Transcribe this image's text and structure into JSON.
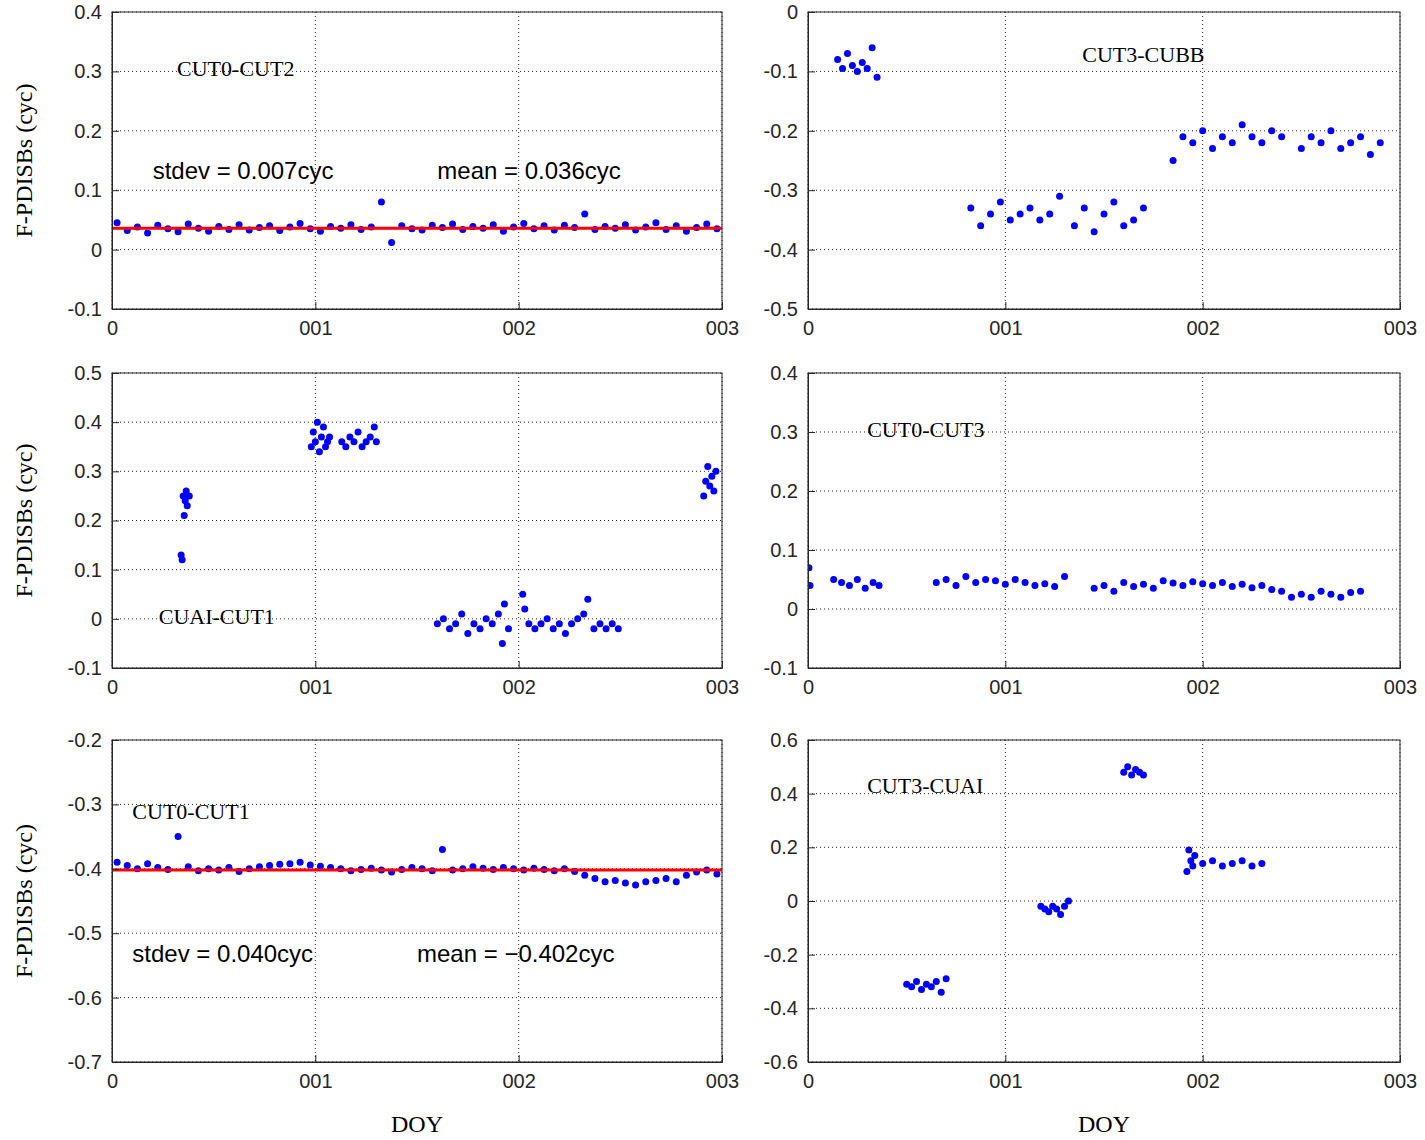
{
  "chart_data": [
    {
      "type": "scatter",
      "annotations": [
        {
          "text": "CUT0-CUT2",
          "x": 0.32,
          "y": 0.3
        },
        {
          "text": "stdev = 0.007cyc",
          "x": 0.2,
          "y": 0.13
        },
        {
          "text": "mean = 0.036cyc",
          "x": 1.6,
          "y": 0.13
        }
      ],
      "ylabel": "F-PDISBs (cyc)",
      "xlim": [
        0,
        3
      ],
      "xticks": [
        0,
        {
          "value": 1,
          "label": "001"
        },
        {
          "value": 2,
          "label": "002"
        },
        {
          "value": 3,
          "label": "003"
        }
      ],
      "ylim": [
        -0.1,
        0.4
      ],
      "yticks": [
        -0.1,
        0,
        0.1,
        0.2,
        0.3,
        0.4
      ],
      "grid": true,
      "series": [
        {
          "type": "scatter",
          "color": "#0000ff",
          "marker": "circle",
          "x": [
            0.025,
            0.075,
            0.125,
            0.175,
            0.225,
            0.275,
            0.325,
            0.375,
            0.425,
            0.475,
            0.525,
            0.575,
            0.625,
            0.675,
            0.725,
            0.775,
            0.825,
            0.875,
            0.925,
            0.975,
            1.025,
            1.075,
            1.125,
            1.175,
            1.225,
            1.275,
            1.325,
            1.375,
            1.425,
            1.475,
            1.525,
            1.575,
            1.625,
            1.675,
            1.725,
            1.775,
            1.825,
            1.875,
            1.925,
            1.975,
            2.025,
            2.075,
            2.125,
            2.175,
            2.225,
            2.275,
            2.325,
            2.375,
            2.425,
            2.475,
            2.525,
            2.575,
            2.625,
            2.675,
            2.725,
            2.775,
            2.825,
            2.875,
            2.925,
            2.975
          ],
          "values": [
            0.045,
            0.032,
            0.038,
            0.028,
            0.041,
            0.035,
            0.03,
            0.043,
            0.036,
            0.031,
            0.039,
            0.034,
            0.042,
            0.033,
            0.037,
            0.04,
            0.032,
            0.038,
            0.044,
            0.035,
            0.031,
            0.039,
            0.036,
            0.042,
            0.034,
            0.038,
            0.08,
            0.012,
            0.04,
            0.035,
            0.033,
            0.041,
            0.037,
            0.043,
            0.034,
            0.039,
            0.036,
            0.042,
            0.031,
            0.038,
            0.044,
            0.035,
            0.04,
            0.033,
            0.041,
            0.037,
            0.06,
            0.034,
            0.039,
            0.036,
            0.042,
            0.033,
            0.038,
            0.045,
            0.034,
            0.04,
            0.031,
            0.037,
            0.043,
            0.035
          ]
        },
        {
          "type": "line",
          "color": "#ff0000",
          "line_style": "solid",
          "x": [
            0,
            3
          ],
          "values": [
            0.036,
            0.036
          ]
        }
      ]
    },
    {
      "type": "scatter",
      "annotations": [
        {
          "text": "CUT3-CUBB",
          "x": 1.39,
          "y": -0.075
        }
      ],
      "xlim": [
        0,
        3
      ],
      "xticks": [
        0,
        {
          "value": 1,
          "label": "001"
        },
        {
          "value": 2,
          "label": "002"
        },
        {
          "value": 3,
          "label": "003"
        }
      ],
      "ylim": [
        -0.5,
        0
      ],
      "yticks": [
        -0.5,
        -0.4,
        -0.3,
        -0.2,
        -0.1,
        0
      ],
      "grid": true,
      "series": [
        {
          "type": "scatter",
          "color": "#0000ff",
          "marker": "circle",
          "x": [
            0.15,
            0.175,
            0.2,
            0.225,
            0.25,
            0.275,
            0.3,
            0.325,
            0.35,
            0.825,
            0.875,
            0.925,
            0.975,
            1.025,
            1.075,
            1.125,
            1.175,
            1.225,
            1.275,
            1.35,
            1.4,
            1.45,
            1.5,
            1.55,
            1.6,
            1.65,
            1.7,
            1.85,
            1.9,
            1.95,
            2,
            2.05,
            2.1,
            2.15,
            2.2,
            2.25,
            2.3,
            2.35,
            2.4,
            2.5,
            2.55,
            2.6,
            2.65,
            2.7,
            2.75,
            2.8,
            2.85,
            2.9
          ],
          "values": [
            -0.08,
            -0.095,
            -0.07,
            -0.09,
            -0.1,
            -0.085,
            -0.095,
            -0.06,
            -0.11,
            -0.33,
            -0.36,
            -0.34,
            -0.32,
            -0.35,
            -0.34,
            -0.33,
            -0.35,
            -0.34,
            -0.31,
            -0.36,
            -0.33,
            -0.37,
            -0.34,
            -0.32,
            -0.36,
            -0.35,
            -0.33,
            -0.25,
            -0.21,
            -0.22,
            -0.2,
            -0.23,
            -0.21,
            -0.22,
            -0.19,
            -0.21,
            -0.22,
            -0.2,
            -0.21,
            -0.23,
            -0.21,
            -0.22,
            -0.2,
            -0.23,
            -0.22,
            -0.21,
            -0.24,
            -0.22
          ]
        }
      ]
    },
    {
      "type": "scatter",
      "annotations": [
        {
          "text": "CUAI-CUT1",
          "x": 0.23,
          "y": 0.0
        }
      ],
      "ylabel": "F-PDISBs (cyc)",
      "xlim": [
        0,
        3
      ],
      "xticks": [
        0,
        {
          "value": 1,
          "label": "001"
        },
        {
          "value": 2,
          "label": "002"
        },
        {
          "value": 3,
          "label": "003"
        }
      ],
      "ylim": [
        -0.1,
        0.5
      ],
      "yticks": [
        -0.1,
        0,
        0.1,
        0.2,
        0.3,
        0.4,
        0.5
      ],
      "grid": true,
      "series": [
        {
          "type": "scatter",
          "color": "#0000ff",
          "marker": "circle",
          "x": [
            0.34,
            0.345,
            0.35,
            0.355,
            0.36,
            0.365,
            0.37,
            0.38,
            0.98,
            0.99,
            1.0,
            1.01,
            1.02,
            1.03,
            1.04,
            1.05,
            1.06,
            1.07,
            1.13,
            1.15,
            1.17,
            1.19,
            1.21,
            1.23,
            1.25,
            1.27,
            1.29,
            1.3,
            1.6,
            1.63,
            1.66,
            1.69,
            1.72,
            1.75,
            1.78,
            1.81,
            1.84,
            1.87,
            1.9,
            1.92,
            1.93,
            1.95,
            2.02,
            2.03,
            2.05,
            2.08,
            2.11,
            2.14,
            2.17,
            2.2,
            2.23,
            2.26,
            2.29,
            2.32,
            2.34,
            2.37,
            2.4,
            2.43,
            2.46,
            2.49,
            2.91,
            2.92,
            2.93,
            2.94,
            2.95,
            2.96,
            2.97
          ],
          "values": [
            0.13,
            0.12,
            0.25,
            0.21,
            0.24,
            0.26,
            0.23,
            0.25,
            0.35,
            0.38,
            0.36,
            0.4,
            0.34,
            0.37,
            0.39,
            0.35,
            0.36,
            0.37,
            0.36,
            0.35,
            0.37,
            0.36,
            0.38,
            0.35,
            0.36,
            0.37,
            0.39,
            0.36,
            -0.01,
            0,
            -0.02,
            -0.01,
            0.01,
            -0.03,
            -0.01,
            -0.02,
            0,
            -0.01,
            0.01,
            -0.05,
            0.03,
            -0.02,
            0.05,
            0.02,
            -0.01,
            -0.02,
            -0.01,
            0,
            -0.02,
            -0.01,
            -0.03,
            -0.01,
            0,
            0.01,
            0.04,
            -0.02,
            -0.01,
            -0.02,
            -0.01,
            -0.02,
            0.25,
            0.28,
            0.31,
            0.27,
            0.29,
            0.26,
            0.3
          ]
        }
      ]
    },
    {
      "type": "scatter",
      "annotations": [
        {
          "text": "CUT0-CUT3",
          "x": 0.3,
          "y": 0.3
        }
      ],
      "xlim": [
        0,
        3
      ],
      "xticks": [
        0,
        {
          "value": 1,
          "label": "001"
        },
        {
          "value": 2,
          "label": "002"
        },
        {
          "value": 3,
          "label": "003"
        }
      ],
      "ylim": [
        -0.1,
        0.4
      ],
      "yticks": [
        -0.1,
        0,
        0.1,
        0.2,
        0.3,
        0.4
      ],
      "grid": true,
      "series": [
        {
          "type": "scatter",
          "color": "#0000ff",
          "marker": "circle",
          "x": [
            0.005,
            0.01,
            0.13,
            0.17,
            0.21,
            0.25,
            0.29,
            0.33,
            0.36,
            0.65,
            0.7,
            0.75,
            0.8,
            0.85,
            0.9,
            0.95,
            1,
            1.05,
            1.1,
            1.15,
            1.2,
            1.25,
            1.3,
            1.45,
            1.5,
            1.55,
            1.6,
            1.65,
            1.7,
            1.75,
            1.8,
            1.85,
            1.9,
            1.95,
            2,
            2.05,
            2.1,
            2.15,
            2.2,
            2.25,
            2.3,
            2.35,
            2.4,
            2.45,
            2.5,
            2.55,
            2.6,
            2.65,
            2.7,
            2.75,
            2.8
          ],
          "values": [
            0.07,
            0.04,
            0.05,
            0.045,
            0.04,
            0.05,
            0.035,
            0.045,
            0.04,
            0.045,
            0.05,
            0.04,
            0.055,
            0.045,
            0.05,
            0.048,
            0.042,
            0.05,
            0.045,
            0.04,
            0.043,
            0.038,
            0.055,
            0.035,
            0.04,
            0.03,
            0.045,
            0.038,
            0.042,
            0.035,
            0.048,
            0.044,
            0.04,
            0.046,
            0.043,
            0.04,
            0.045,
            0.038,
            0.042,
            0.036,
            0.04,
            0.033,
            0.03,
            0.02,
            0.025,
            0.02,
            0.03,
            0.025,
            0.02,
            0.028,
            0.03
          ]
        }
      ]
    },
    {
      "type": "scatter",
      "annotations": [
        {
          "text": "CUT0-CUT1",
          "x": 0.1,
          "y": -0.315
        },
        {
          "text": "stdev = 0.040cyc",
          "x": 0.1,
          "y": -0.535
        },
        {
          "text": "mean = −0.402cyc",
          "x": 1.5,
          "y": -0.535
        }
      ],
      "xlabel": "DOY",
      "ylabel": "F-PDISBs (cyc)",
      "xlim": [
        0,
        3
      ],
      "xticks": [
        0,
        {
          "value": 1,
          "label": "001"
        },
        {
          "value": 2,
          "label": "002"
        },
        {
          "value": 3,
          "label": "003"
        }
      ],
      "ylim": [
        -0.7,
        -0.2
      ],
      "yticks": [
        -0.7,
        -0.6,
        -0.5,
        -0.4,
        -0.3,
        -0.2
      ],
      "grid": true,
      "series": [
        {
          "type": "scatter",
          "color": "#0000ff",
          "marker": "circle",
          "x": [
            0.025,
            0.075,
            0.125,
            0.175,
            0.225,
            0.275,
            0.325,
            0.375,
            0.425,
            0.475,
            0.525,
            0.575,
            0.625,
            0.675,
            0.725,
            0.775,
            0.825,
            0.875,
            0.925,
            0.975,
            1.025,
            1.075,
            1.125,
            1.175,
            1.225,
            1.275,
            1.325,
            1.375,
            1.425,
            1.475,
            1.525,
            1.575,
            1.625,
            1.675,
            1.725,
            1.775,
            1.825,
            1.875,
            1.925,
            1.975,
            2.025,
            2.075,
            2.125,
            2.175,
            2.225,
            2.275,
            2.325,
            2.375,
            2.425,
            2.475,
            2.525,
            2.575,
            2.625,
            2.675,
            2.725,
            2.775,
            2.825,
            2.875,
            2.925,
            2.975
          ],
          "values": [
            -0.39,
            -0.395,
            -0.4,
            -0.392,
            -0.398,
            -0.401,
            -0.35,
            -0.397,
            -0.403,
            -0.4,
            -0.402,
            -0.398,
            -0.404,
            -0.4,
            -0.397,
            -0.395,
            -0.393,
            -0.392,
            -0.39,
            -0.394,
            -0.396,
            -0.398,
            -0.4,
            -0.403,
            -0.401,
            -0.399,
            -0.402,
            -0.405,
            -0.401,
            -0.398,
            -0.4,
            -0.403,
            -0.37,
            -0.402,
            -0.4,
            -0.397,
            -0.399,
            -0.401,
            -0.398,
            -0.4,
            -0.402,
            -0.399,
            -0.401,
            -0.403,
            -0.4,
            -0.404,
            -0.41,
            -0.415,
            -0.42,
            -0.418,
            -0.422,
            -0.425,
            -0.42,
            -0.418,
            -0.415,
            -0.42,
            -0.41,
            -0.405,
            -0.402,
            -0.408
          ]
        },
        {
          "type": "line",
          "color": "#ff0000",
          "line_style": "solid",
          "x": [
            0,
            3
          ],
          "values": [
            -0.402,
            -0.402
          ]
        }
      ]
    },
    {
      "type": "scatter",
      "annotations": [
        {
          "text": "CUT3-CUAI",
          "x": 0.3,
          "y": 0.42
        }
      ],
      "xlabel": "DOY",
      "xlim": [
        0,
        3
      ],
      "xticks": [
        0,
        {
          "value": 1,
          "label": "001"
        },
        {
          "value": 2,
          "label": "002"
        },
        {
          "value": 3,
          "label": "003"
        }
      ],
      "ylim": [
        -0.6,
        0.6
      ],
      "yticks": [
        -0.6,
        -0.4,
        -0.2,
        0,
        0.2,
        0.4,
        0.6
      ],
      "grid": true,
      "series": [
        {
          "type": "scatter",
          "color": "#0000ff",
          "marker": "circle",
          "x": [
            0.5,
            0.525,
            0.55,
            0.575,
            0.6,
            0.625,
            0.65,
            0.675,
            0.7,
            1.18,
            1.2,
            1.22,
            1.24,
            1.26,
            1.28,
            1.3,
            1.32,
            1.6,
            1.62,
            1.64,
            1.66,
            1.68,
            1.7,
            1.92,
            1.93,
            1.94,
            1.95,
            1.96,
            2,
            2.05,
            2.1,
            2.15,
            2.2,
            2.25,
            2.3
          ],
          "values": [
            -0.31,
            -0.32,
            -0.3,
            -0.33,
            -0.31,
            -0.32,
            -0.3,
            -0.34,
            -0.29,
            -0.02,
            -0.03,
            -0.04,
            -0.02,
            -0.03,
            -0.05,
            -0.02,
            0,
            0.48,
            0.5,
            0.47,
            0.49,
            0.48,
            0.47,
            0.11,
            0.19,
            0.15,
            0.13,
            0.17,
            0.14,
            0.15,
            0.13,
            0.14,
            0.15,
            0.13,
            0.14
          ]
        }
      ]
    }
  ]
}
